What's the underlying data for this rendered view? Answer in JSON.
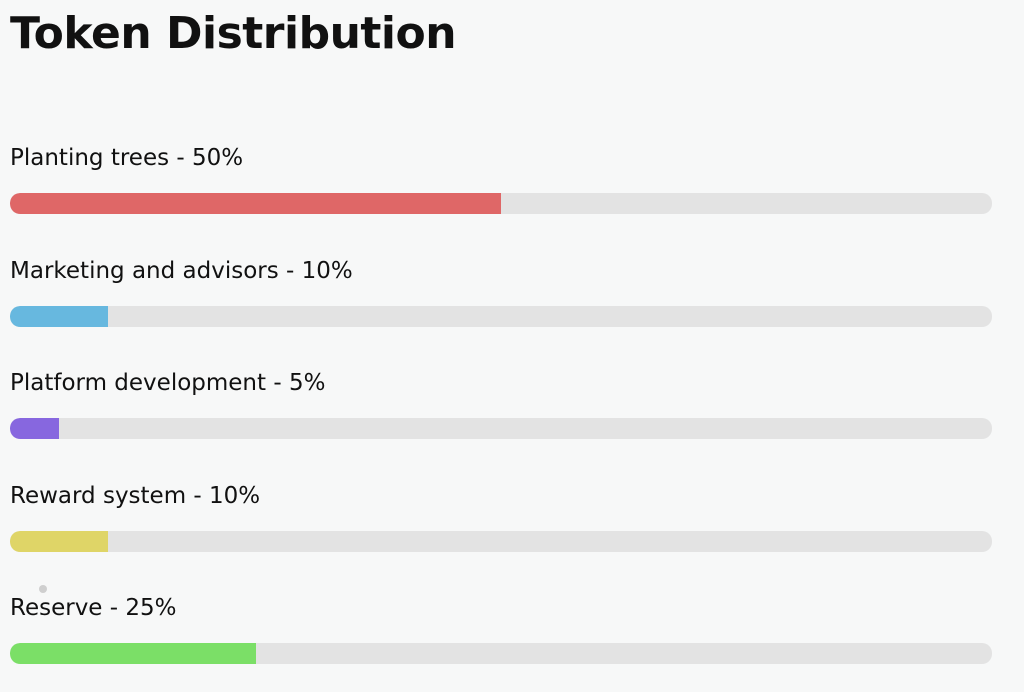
{
  "title": "Token Distribution",
  "items": [
    {
      "label": "Planting trees - 50%",
      "percent": 50,
      "color": "#df6767"
    },
    {
      "label": "Marketing and advisors - 10%",
      "percent": 10,
      "color": "#67b8df"
    },
    {
      "label": "Platform development - 5%",
      "percent": 5,
      "color": "#8767df"
    },
    {
      "label": "Reward system - 10%",
      "percent": 10,
      "color": "#dfd567"
    },
    {
      "label": "Reserve - 25%",
      "percent": 25,
      "color": "#7bdf67"
    }
  ]
}
